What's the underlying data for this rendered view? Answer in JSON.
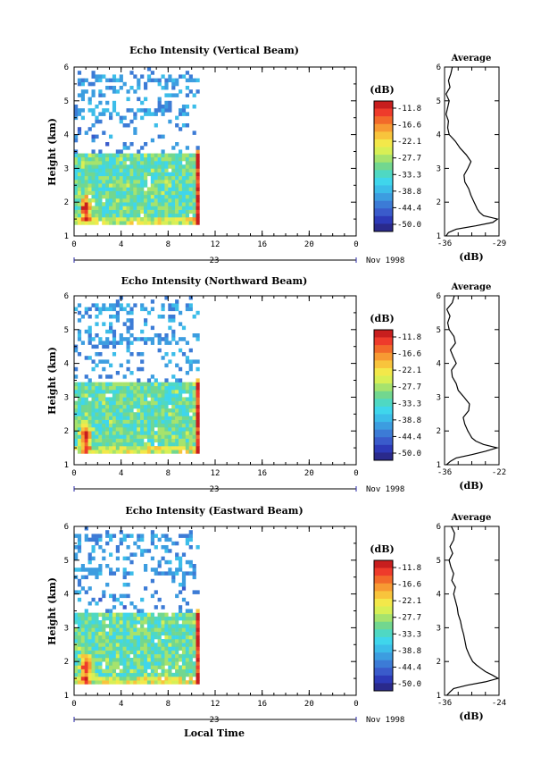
{
  "chart_data": [
    {
      "type": "heatmap",
      "title": "Echo Intensity (Vertical Beam)",
      "ylabel": "Height (km)",
      "xlabel": "",
      "date_label": "Nov 1998",
      "day_label": "23",
      "xlim": [
        0,
        24
      ],
      "ylim": [
        1,
        6
      ],
      "xticks": [
        "0",
        "4",
        "8",
        "12",
        "16",
        "20",
        "0"
      ],
      "yticks": [
        "1",
        "2",
        "3",
        "4",
        "5",
        "6"
      ],
      "data_time_range": [
        0,
        10.8
      ],
      "colorbar": {
        "unit": "(dB)",
        "labels": [
          "-11.8",
          "-16.6",
          "-22.1",
          "-27.7",
          "-33.3",
          "-38.8",
          "-44.4",
          "-50.0"
        ]
      },
      "average": {
        "title": "Average",
        "xlabel": "(dB)",
        "xticks": [
          "-36",
          "-29"
        ],
        "xlim": [
          -36,
          -29
        ],
        "ylim": [
          1,
          6
        ],
        "height": [
          1.0,
          1.1,
          1.2,
          1.3,
          1.4,
          1.5,
          1.6,
          1.7,
          1.8,
          1.9,
          2.0,
          2.2,
          2.4,
          2.6,
          2.8,
          3.0,
          3.2,
          3.4,
          3.6,
          3.8,
          4.0,
          4.2,
          4.4,
          4.6,
          4.8,
          5.0,
          5.2,
          5.4,
          5.6,
          5.8,
          6.0
        ],
        "value": [
          -35.8,
          -35.5,
          -34.5,
          -32.0,
          -29.8,
          -29.2,
          -31.0,
          -31.5,
          -31.8,
          -32.0,
          -32.2,
          -32.6,
          -32.9,
          -33.4,
          -33.5,
          -33.0,
          -32.6,
          -33.2,
          -34.0,
          -34.6,
          -35.4,
          -35.6,
          -35.5,
          -35.8,
          -35.6,
          -35.4,
          -35.8,
          -35.3,
          -35.5,
          -35.2,
          -35.0
        ]
      }
    },
    {
      "type": "heatmap",
      "title": "Echo Intensity (Northward Beam)",
      "ylabel": "Height (km)",
      "xlabel": "",
      "date_label": "Nov 1998",
      "day_label": "23",
      "xlim": [
        0,
        24
      ],
      "ylim": [
        1,
        6
      ],
      "xticks": [
        "0",
        "4",
        "8",
        "12",
        "16",
        "20",
        "0"
      ],
      "yticks": [
        "1",
        "2",
        "3",
        "4",
        "5",
        "6"
      ],
      "data_time_range": [
        0,
        10.8
      ],
      "colorbar": {
        "unit": "(dB)",
        "labels": [
          "-11.8",
          "-16.6",
          "-22.1",
          "-27.7",
          "-33.3",
          "-38.8",
          "-44.4",
          "-50.0"
        ]
      },
      "average": {
        "title": "Average",
        "xlabel": "(dB)",
        "xticks": [
          "-36",
          "-22"
        ],
        "xlim": [
          -36,
          -22
        ],
        "ylim": [
          1,
          6
        ],
        "height": [
          1.0,
          1.1,
          1.2,
          1.3,
          1.4,
          1.5,
          1.6,
          1.7,
          1.8,
          1.9,
          2.0,
          2.2,
          2.4,
          2.6,
          2.8,
          3.0,
          3.2,
          3.4,
          3.6,
          3.8,
          4.0,
          4.2,
          4.4,
          4.6,
          4.8,
          5.0,
          5.2,
          5.4,
          5.6,
          5.8,
          6.0
        ],
        "value": [
          -35.5,
          -34.5,
          -33.0,
          -29.0,
          -25.5,
          -22.5,
          -26.0,
          -28.0,
          -29.0,
          -29.5,
          -30.0,
          -30.8,
          -31.2,
          -29.8,
          -29.6,
          -31.0,
          -32.5,
          -33.0,
          -34.0,
          -34.2,
          -33.0,
          -33.8,
          -34.5,
          -33.2,
          -33.6,
          -34.8,
          -35.2,
          -34.6,
          -35.4,
          -34.0,
          -33.5
        ]
      }
    },
    {
      "type": "heatmap",
      "title": "Echo Intensity (Eastward Beam)",
      "ylabel": "Height (km)",
      "xlabel": "Local Time",
      "date_label": "Nov 1998",
      "day_label": "23",
      "xlim": [
        0,
        24
      ],
      "ylim": [
        1,
        6
      ],
      "xticks": [
        "0",
        "4",
        "8",
        "12",
        "16",
        "20",
        "0"
      ],
      "yticks": [
        "1",
        "2",
        "3",
        "4",
        "5",
        "6"
      ],
      "data_time_range": [
        0,
        10.8
      ],
      "colorbar": {
        "unit": "(dB)",
        "labels": [
          "-11.8",
          "-16.6",
          "-22.1",
          "-27.7",
          "-33.3",
          "-38.8",
          "-44.4",
          "-50.0"
        ]
      },
      "average": {
        "title": "Average",
        "xlabel": "(dB)",
        "xticks": [
          "-36",
          "-24"
        ],
        "xlim": [
          -36,
          -24
        ],
        "ylim": [
          1,
          6
        ],
        "height": [
          1.0,
          1.1,
          1.2,
          1.3,
          1.4,
          1.5,
          1.6,
          1.7,
          1.8,
          1.9,
          2.0,
          2.2,
          2.4,
          2.6,
          2.8,
          3.0,
          3.2,
          3.4,
          3.6,
          3.8,
          4.0,
          4.2,
          4.4,
          4.6,
          4.8,
          5.0,
          5.2,
          5.4,
          5.6,
          5.8,
          6.0
        ],
        "value": [
          -35.5,
          -34.8,
          -34.0,
          -31.0,
          -27.0,
          -24.2,
          -25.5,
          -27.0,
          -28.0,
          -29.0,
          -29.8,
          -30.6,
          -31.2,
          -31.5,
          -31.8,
          -32.2,
          -32.5,
          -33.0,
          -33.2,
          -33.6,
          -34.0,
          -33.6,
          -34.4,
          -34.0,
          -34.6,
          -35.0,
          -34.2,
          -34.8,
          -34.0,
          -33.8,
          -34.5
        ]
      }
    }
  ],
  "colors": {
    "scale": [
      "#c81e1e",
      "#ee3b2b",
      "#f26a2a",
      "#f79a33",
      "#f8c43c",
      "#f3e84a",
      "#d8ef55",
      "#a6e36d",
      "#72d78f",
      "#4fd8c3",
      "#3fd6ec",
      "#3cbde9",
      "#3c9de0",
      "#3c7bd6",
      "#3a5bcb",
      "#2d3ab8",
      "#2a2a8c"
    ]
  }
}
